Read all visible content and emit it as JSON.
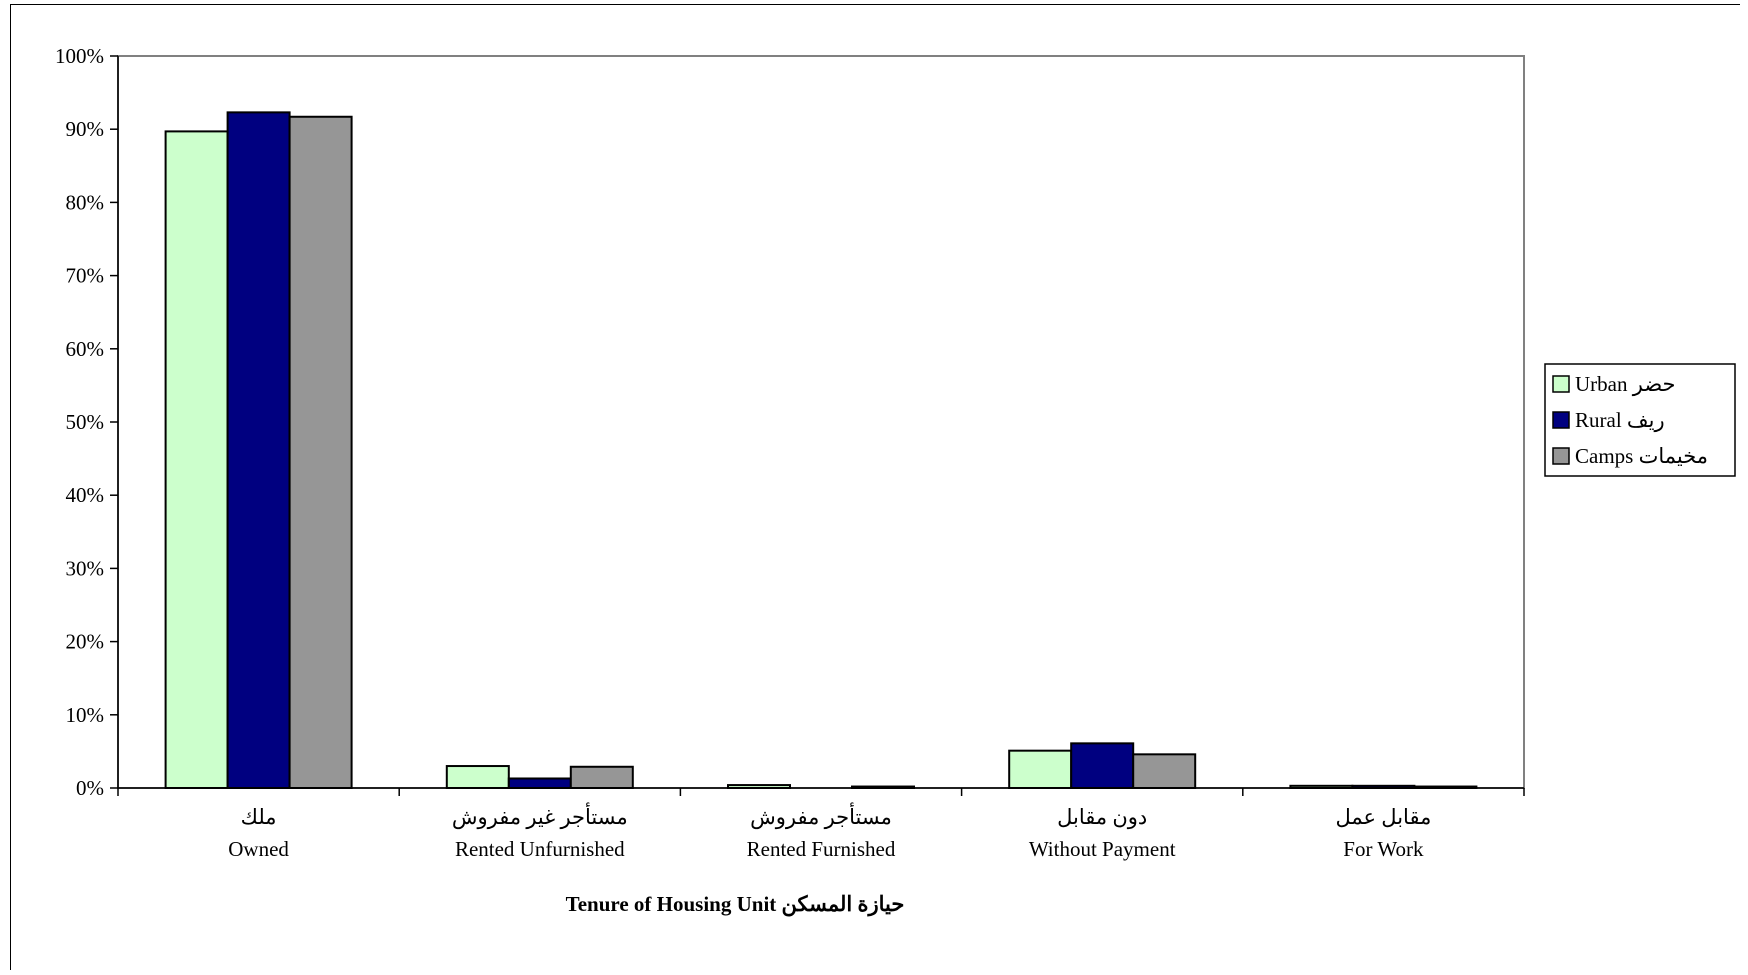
{
  "chart_data": {
    "type": "bar",
    "categories": [
      {
        "ar": "ملك",
        "en": "Owned"
      },
      {
        "ar": "مستأجر غير مفروش",
        "en": "Rented Unfurnished"
      },
      {
        "ar": "مستأجر مفروش",
        "en": "Rented Furnished"
      },
      {
        "ar": "دون مقابل",
        "en": "Without Payment"
      },
      {
        "ar": "مقابل عمل",
        "en": "For Work"
      }
    ],
    "series": [
      {
        "name": "Urban  حضر",
        "color": "#CCFFCC",
        "values": [
          89.7,
          3.0,
          0.4,
          5.1,
          0.3
        ]
      },
      {
        "name": "Rural  ريف",
        "color": "#000080",
        "values": [
          92.3,
          1.3,
          0.0,
          6.1,
          0.3
        ]
      },
      {
        "name": "Camps  مخيمات",
        "color": "#969696",
        "values": [
          91.7,
          2.9,
          0.2,
          4.6,
          0.2
        ]
      }
    ],
    "y_ticks": [
      "0%",
      "10%",
      "20%",
      "30%",
      "40%",
      "50%",
      "60%",
      "70%",
      "80%",
      "90%",
      "100%"
    ],
    "ylim": [
      0,
      100
    ],
    "xlabel": "Tenure of Housing Unit  حيازة المسكن",
    "ylabel": "",
    "title": "",
    "legend_position": "right",
    "grid": false
  }
}
